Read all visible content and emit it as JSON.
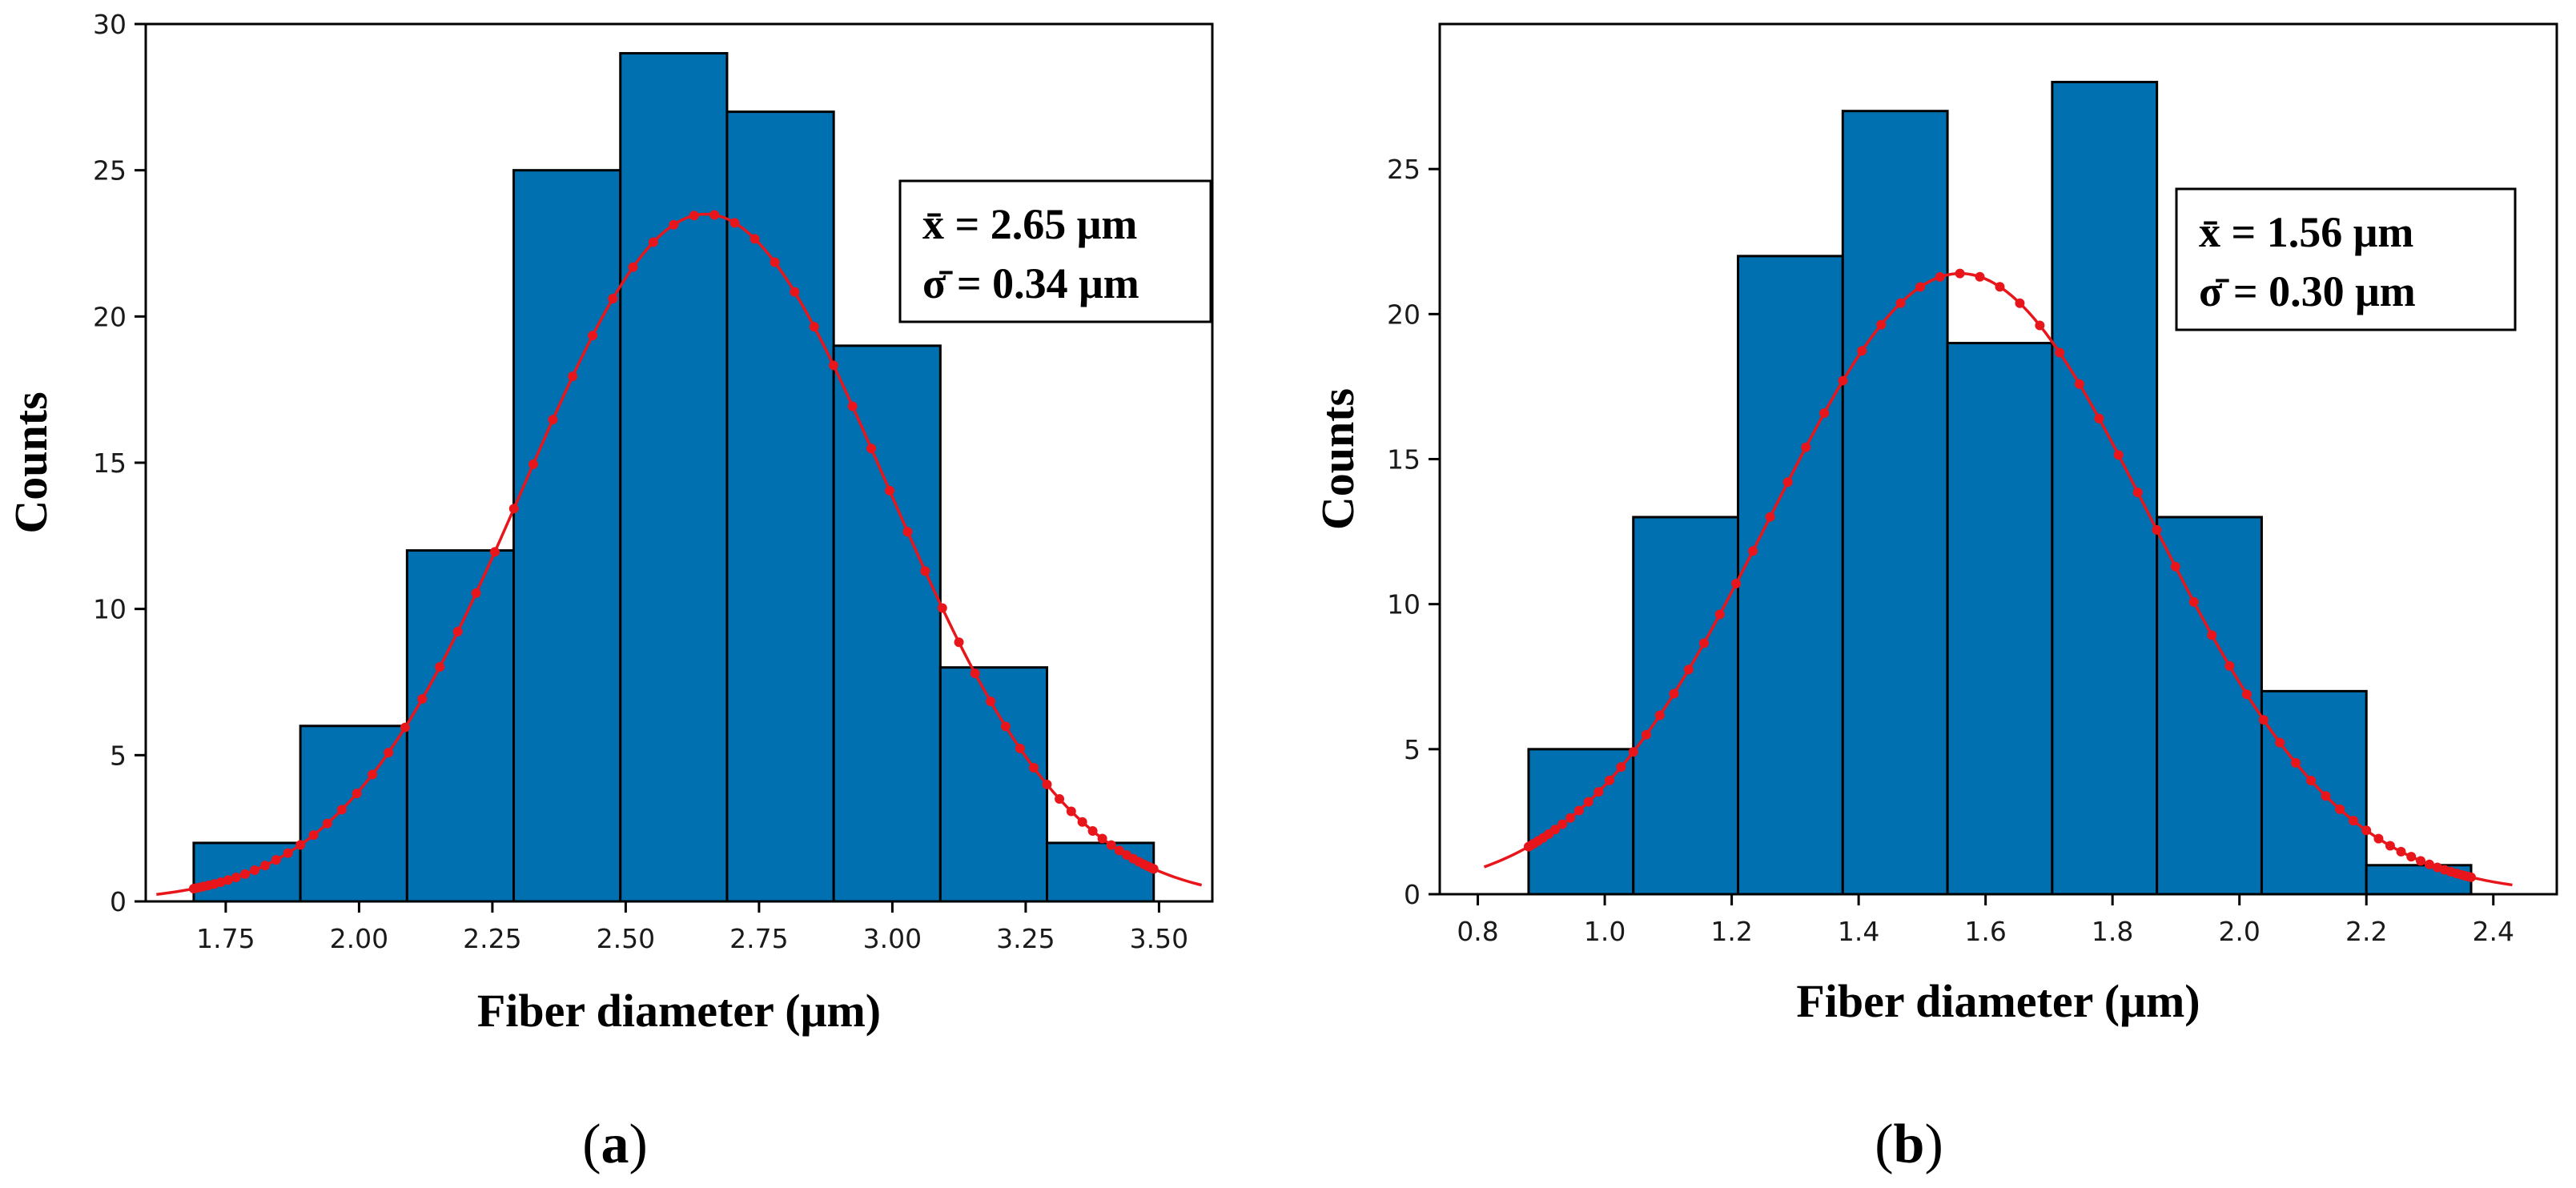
{
  "figure": {
    "colors": {
      "bar_fill": "#0070b0",
      "bar_edge": "#000000",
      "curve": "#e8161b",
      "axis": "#000000"
    }
  },
  "chart_data": [
    {
      "type": "bar",
      "subtype": "histogram",
      "panel_label": "a",
      "xlabel": "Fiber diameter (μm)",
      "ylabel": "Counts",
      "xlim": [
        1.6,
        3.6
      ],
      "ylim": [
        0,
        30
      ],
      "xticks": [
        1.75,
        2.0,
        2.25,
        2.5,
        2.75,
        3.0,
        3.25,
        3.5
      ],
      "xtick_labels": [
        "1.75",
        "2.00",
        "2.25",
        "2.50",
        "2.75",
        "3.00",
        "3.25",
        "3.50"
      ],
      "yticks": [
        0,
        5,
        10,
        15,
        20,
        25,
        30
      ],
      "ytick_labels": [
        "0",
        "5",
        "10",
        "15",
        "20",
        "25",
        "30"
      ],
      "bin_edges": [
        1.69,
        1.89,
        2.09,
        2.29,
        2.49,
        2.69,
        2.89,
        3.09,
        3.29,
        3.49
      ],
      "values": [
        2,
        6,
        12,
        25,
        29,
        27,
        19,
        8,
        2
      ],
      "fit": {
        "mean": 2.65,
        "sd": 0.34,
        "peak": 23.5,
        "x_range": [
          1.62,
          3.58
        ]
      },
      "stats_lines": [
        "x̄ = 2.65 μm",
        "σ̄ = 0.34 μm"
      ]
    },
    {
      "type": "bar",
      "subtype": "histogram",
      "panel_label": "b",
      "xlabel": "Fiber diameter (μm)",
      "ylabel": "Counts",
      "xlim": [
        0.74,
        2.5
      ],
      "ylim": [
        0,
        30
      ],
      "xticks": [
        0.8,
        1.0,
        1.2,
        1.4,
        1.6,
        1.8,
        2.0,
        2.2,
        2.4
      ],
      "xtick_labels": [
        "0.8",
        "1.0",
        "1.2",
        "1.4",
        "1.6",
        "1.8",
        "2.0",
        "2.2",
        "2.4"
      ],
      "yticks": [
        0,
        5,
        10,
        15,
        20,
        25
      ],
      "ytick_labels": [
        "0",
        "5",
        "10",
        "15",
        "20",
        "25"
      ],
      "bin_edges": [
        0.88,
        1.045,
        1.21,
        1.375,
        1.54,
        1.705,
        1.87,
        2.035,
        2.2,
        2.365
      ],
      "values": [
        5,
        13,
        22,
        27,
        19,
        28,
        13,
        7,
        1
      ],
      "fit": {
        "mean": 1.56,
        "sd": 0.3,
        "peak": 21.4,
        "x_range": [
          0.81,
          2.43
        ]
      },
      "stats_lines": [
        "x̄ = 1.56 μm",
        "σ̄ = 0.30 μm"
      ]
    }
  ]
}
